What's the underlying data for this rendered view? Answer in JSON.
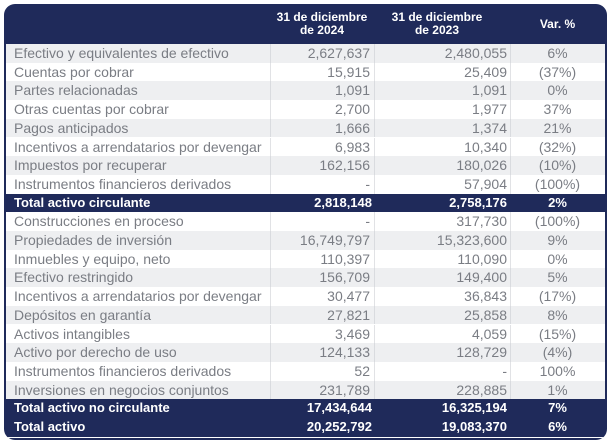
{
  "header": {
    "col_label": "",
    "col_2024": "31 de diciembre de 2024",
    "col_2024_l1": "31 de diciembre",
    "col_2024_l2": "de 2024",
    "col_2023_l1": "31 de diciembre",
    "col_2023_l2": "de 2023",
    "col_var": "Var. %"
  },
  "colors": {
    "navy": "#1f2a5a",
    "zebra_gray": "#eeeff1",
    "text_gray": "#7a7d84",
    "white": "#ffffff"
  },
  "rows": [
    {
      "label": "Efectivo y equivalentes de efectivo",
      "v2024": "2,627,637",
      "v2023": "2,480,055",
      "var": "6%",
      "style": "gray"
    },
    {
      "label": "Cuentas por cobrar",
      "v2024": "15,915",
      "v2023": "25,409",
      "var": "(37%)",
      "style": "white"
    },
    {
      "label": "Partes relacionadas",
      "v2024": "1,091",
      "v2023": "1,091",
      "var": "0%",
      "style": "gray"
    },
    {
      "label": "Otras cuentas por cobrar",
      "v2024": "2,700",
      "v2023": "1,977",
      "var": "37%",
      "style": "white"
    },
    {
      "label": "Pagos anticipados",
      "v2024": "1,666",
      "v2023": "1,374",
      "var": "21%",
      "style": "gray"
    },
    {
      "label": "Incentivos a arrendatarios por devengar",
      "v2024": "6,983",
      "v2023": "10,340",
      "var": "(32%)",
      "style": "white"
    },
    {
      "label": "Impuestos por recuperar",
      "v2024": "162,156",
      "v2023": "180,026",
      "var": "(10%)",
      "style": "gray"
    },
    {
      "label": "Instrumentos financieros derivados",
      "v2024": "-",
      "v2023": "57,904",
      "var": "(100%)",
      "style": "white"
    },
    {
      "label": "Total activo circulante",
      "v2024": "2,818,148",
      "v2023": "2,758,176",
      "var": "2%",
      "style": "total"
    },
    {
      "label": "Construcciones en proceso",
      "v2024": "-",
      "v2023": "317,730",
      "var": "(100%)",
      "style": "white"
    },
    {
      "label": "Propiedades de inversión",
      "v2024": "16,749,797",
      "v2023": "15,323,600",
      "var": "9%",
      "style": "gray"
    },
    {
      "label": "Inmuebles y equipo, neto",
      "v2024": "110,397",
      "v2023": "110,090",
      "var": "0%",
      "style": "white"
    },
    {
      "label": "Efectivo restringido",
      "v2024": "156,709",
      "v2023": "149,400",
      "var": "5%",
      "style": "gray"
    },
    {
      "label": "Incentivos a arrendatarios por devengar",
      "v2024": "30,477",
      "v2023": "36,843",
      "var": "(17%)",
      "style": "white"
    },
    {
      "label": "Depósitos en garantía",
      "v2024": "27,821",
      "v2023": "25,858",
      "var": "8%",
      "style": "gray"
    },
    {
      "label": "Activos intangibles",
      "v2024": "3,469",
      "v2023": "4,059",
      "var": "(15%)",
      "style": "white"
    },
    {
      "label": "Activo por derecho de uso",
      "v2024": "124,133",
      "v2023": "128,729",
      "var": "(4%)",
      "style": "gray"
    },
    {
      "label": "Instrumentos financieros derivados",
      "v2024": "52",
      "v2023": "-",
      "var": "100%",
      "style": "white"
    },
    {
      "label": "Inversiones en negocios conjuntos",
      "v2024": "231,789",
      "v2023": "228,885",
      "var": "1%",
      "style": "gray"
    },
    {
      "label": "Total activo no circulante",
      "v2024": "17,434,644",
      "v2023": "16,325,194",
      "var": "7%",
      "style": "total"
    },
    {
      "label": "Total activo",
      "v2024": "20,252,792",
      "v2023": "19,083,370",
      "var": "6%",
      "style": "total"
    }
  ]
}
